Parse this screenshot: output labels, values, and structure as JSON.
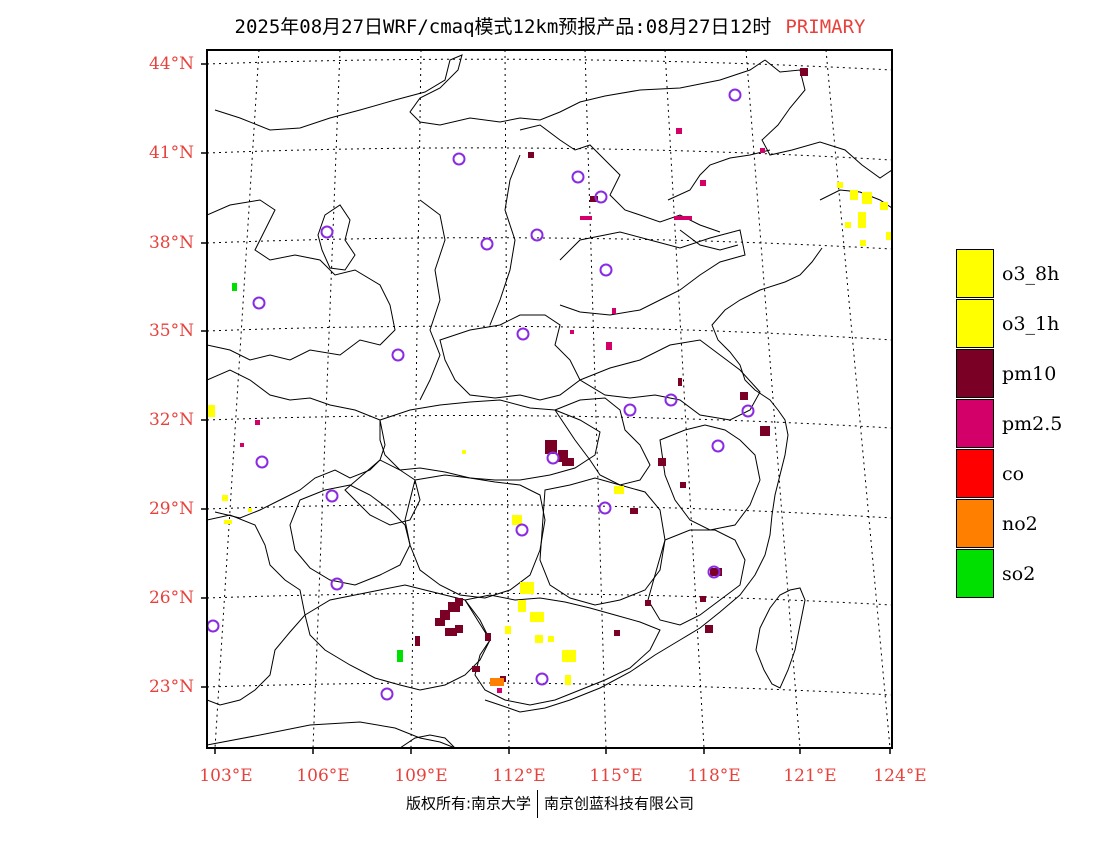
{
  "header": {
    "title": "2025年08月27日WRF/cmaq模式12km预报产品:08月27日12时",
    "tag": "PRIMARY"
  },
  "axes": {
    "lat_labels": [
      "44°N",
      "41°N",
      "38°N",
      "35°N",
      "32°N",
      "29°N",
      "26°N",
      "23°N"
    ],
    "lon_labels": [
      "103°E",
      "106°E",
      "109°E",
      "112°E",
      "115°E",
      "118°E",
      "121°E",
      "124°E"
    ]
  },
  "legend": {
    "items": [
      {
        "label": "o3_8h",
        "color": "#ffff00"
      },
      {
        "label": "o3_1h",
        "color": "#ffff00"
      },
      {
        "label": "pm10",
        "color": "#7a0026"
      },
      {
        "label": "pm2.5",
        "color": "#d4006a"
      },
      {
        "label": "co",
        "color": "#ff0000"
      },
      {
        "label": "no2",
        "color": "#ff7f00"
      },
      {
        "label": "so2",
        "color": "#00e000"
      }
    ]
  },
  "footer": {
    "copyright": "版权所有:南京大学",
    "company": "南京创蓝科技有限公司"
  },
  "colors": {
    "label_red": "#e8413c",
    "station_circle": "#8a2be2"
  }
}
